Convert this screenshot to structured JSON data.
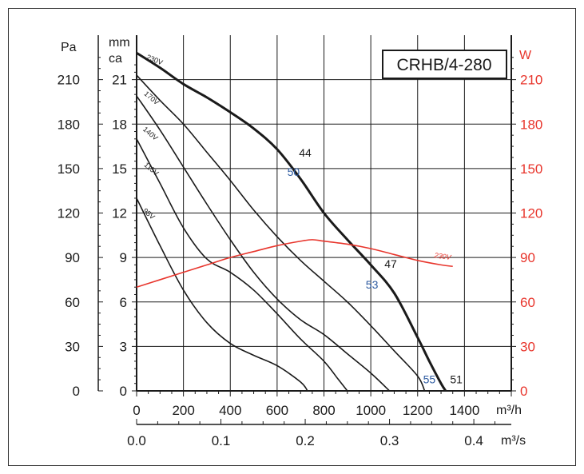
{
  "chart_data": {
    "type": "line",
    "title": "CRHB/4-280",
    "x_primary": {
      "unit": "m³/h",
      "range": [
        0,
        1600
      ],
      "ticks": [
        "0",
        "200",
        "400",
        "600",
        "800",
        "1000",
        "1200",
        "1400"
      ],
      "tick_values": [
        0,
        200,
        400,
        600,
        800,
        1000,
        1200,
        1400
      ]
    },
    "x_secondary": {
      "unit": "m³/s",
      "ticks": [
        "0.0",
        "0.1",
        "0.2",
        "0.3",
        "0.4"
      ],
      "tick_values": [
        0,
        0.1,
        0.2,
        0.3,
        0.4
      ]
    },
    "y_pa": {
      "unit": "Pa",
      "range": [
        0,
        240
      ],
      "ticks": [
        "0",
        "30",
        "60",
        "90",
        "120",
        "150",
        "180",
        "210"
      ],
      "tick_values": [
        0,
        30,
        60,
        90,
        120,
        150,
        180,
        210
      ]
    },
    "y_mmca": {
      "unit": "mm ca",
      "ticks": [
        "0",
        "3",
        "6",
        "9",
        "12",
        "15",
        "18",
        "21"
      ],
      "tick_values": [
        0,
        3,
        6,
        9,
        12,
        15,
        18,
        21
      ]
    },
    "y_w": {
      "unit": "W",
      "range": [
        0,
        240
      ],
      "ticks": [
        "0",
        "30",
        "60",
        "90",
        "120",
        "150",
        "180",
        "210"
      ],
      "tick_values": [
        0,
        30,
        60,
        90,
        120,
        150,
        180,
        210
      ]
    },
    "grid": true,
    "series": [
      {
        "name": "230V",
        "kind": "pressure",
        "axis": "pa",
        "color": "#1a1a1a",
        "bold": true,
        "label_at": [
          40,
          224
        ],
        "points": [
          [
            0,
            228
          ],
          [
            100,
            218
          ],
          [
            200,
            207
          ],
          [
            300,
            198
          ],
          [
            400,
            188
          ],
          [
            500,
            177
          ],
          [
            600,
            163
          ],
          [
            700,
            143
          ],
          [
            800,
            120
          ],
          [
            900,
            102
          ],
          [
            1000,
            85
          ],
          [
            1100,
            66
          ],
          [
            1200,
            36
          ],
          [
            1250,
            20
          ],
          [
            1300,
            5
          ],
          [
            1320,
            0
          ]
        ]
      },
      {
        "name": "170V",
        "kind": "pressure",
        "axis": "pa",
        "color": "#1a1a1a",
        "label_at": [
          30,
          200
        ],
        "points": [
          [
            0,
            213
          ],
          [
            100,
            196
          ],
          [
            200,
            180
          ],
          [
            300,
            161
          ],
          [
            400,
            142
          ],
          [
            500,
            122
          ],
          [
            600,
            104
          ],
          [
            700,
            88
          ],
          [
            800,
            74
          ],
          [
            900,
            60
          ],
          [
            1000,
            44
          ],
          [
            1100,
            27
          ],
          [
            1200,
            10
          ],
          [
            1230,
            0
          ]
        ]
      },
      {
        "name": "140V",
        "kind": "pressure",
        "axis": "pa",
        "color": "#1a1a1a",
        "label_at": [
          25,
          176
        ],
        "points": [
          [
            0,
            199
          ],
          [
            100,
            176
          ],
          [
            200,
            151
          ],
          [
            300,
            126
          ],
          [
            400,
            102
          ],
          [
            500,
            80
          ],
          [
            600,
            62
          ],
          [
            700,
            48
          ],
          [
            800,
            38
          ],
          [
            900,
            25
          ],
          [
            1000,
            12
          ],
          [
            1080,
            0
          ]
        ]
      },
      {
        "name": "115V",
        "kind": "pressure",
        "axis": "pa",
        "color": "#1a1a1a",
        "label_at": [
          30,
          152
        ],
        "points": [
          [
            0,
            170
          ],
          [
            100,
            140
          ],
          [
            200,
            110
          ],
          [
            300,
            89
          ],
          [
            400,
            80
          ],
          [
            500,
            68
          ],
          [
            600,
            52
          ],
          [
            700,
            35
          ],
          [
            800,
            20
          ],
          [
            860,
            8
          ],
          [
            900,
            0
          ]
        ]
      },
      {
        "name": "95V",
        "kind": "pressure",
        "axis": "pa",
        "color": "#1a1a1a",
        "label_at": [
          25,
          121
        ],
        "points": [
          [
            0,
            130
          ],
          [
            100,
            98
          ],
          [
            200,
            68
          ],
          [
            300,
            46
          ],
          [
            400,
            32
          ],
          [
            500,
            24
          ],
          [
            600,
            17
          ],
          [
            700,
            6
          ],
          [
            730,
            0
          ]
        ]
      },
      {
        "name": "230V",
        "kind": "power",
        "axis": "w",
        "color": "#e8352c",
        "label_at": [
          1270,
          90
        ],
        "points": [
          [
            0,
            70
          ],
          [
            100,
            75
          ],
          [
            200,
            80
          ],
          [
            300,
            85
          ],
          [
            400,
            90
          ],
          [
            500,
            94
          ],
          [
            600,
            98
          ],
          [
            700,
            101
          ],
          [
            750,
            102
          ],
          [
            800,
            101
          ],
          [
            900,
            99
          ],
          [
            1000,
            96
          ],
          [
            1100,
            92
          ],
          [
            1200,
            88
          ],
          [
            1300,
            85
          ],
          [
            1350,
            84
          ]
        ]
      }
    ],
    "annotations": [
      {
        "text": "44",
        "color": "#1a1a1a",
        "x": 720,
        "y": 158
      },
      {
        "text": "50",
        "color": "#2c5aa0",
        "x": 670,
        "y": 145
      },
      {
        "text": "47",
        "color": "#1a1a1a",
        "x": 1085,
        "y": 83
      },
      {
        "text": "53",
        "color": "#2c5aa0",
        "x": 1005,
        "y": 69
      },
      {
        "text": "55",
        "color": "#2c5aa0",
        "x": 1250,
        "y": 5
      },
      {
        "text": "51",
        "color": "#1a1a1a",
        "x": 1365,
        "y": 5
      }
    ]
  },
  "labels": {
    "unit_pa": "Pa",
    "unit_mm": "mm",
    "unit_ca": "ca",
    "unit_w": "W",
    "unit_m3h": "m³/h",
    "unit_m3s": "m³/s"
  }
}
